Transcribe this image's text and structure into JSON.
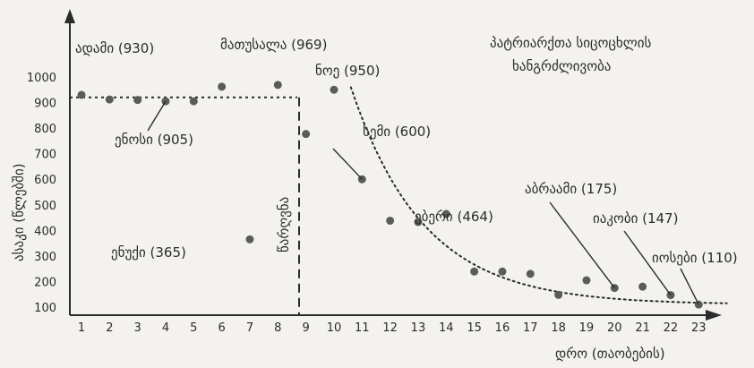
{
  "chart_data": {
    "type": "scatter",
    "title_lines": [
      "პატრიარქთა სიცოცხლის",
      "ხანგრძლივობა"
    ],
    "xlabel": "დრო (თაობების)",
    "ylabel": "ასაკი (წლებში)",
    "xlim": [
      0.6,
      24
    ],
    "ylim": [
      60,
      1150
    ],
    "x_ticks": [
      1,
      2,
      3,
      4,
      5,
      6,
      7,
      8,
      9,
      10,
      11,
      12,
      13,
      14,
      15,
      16,
      17,
      18,
      19,
      20,
      21,
      22,
      23
    ],
    "y_ticks": [
      100,
      200,
      300,
      400,
      500,
      600,
      700,
      800,
      900,
      1000
    ],
    "points": [
      {
        "x": 1,
        "y": 930
      },
      {
        "x": 2,
        "y": 912
      },
      {
        "x": 3,
        "y": 910
      },
      {
        "x": 4,
        "y": 905
      },
      {
        "x": 5,
        "y": 905
      },
      {
        "x": 6,
        "y": 962
      },
      {
        "x": 7,
        "y": 365
      },
      {
        "x": 8,
        "y": 969
      },
      {
        "x": 9,
        "y": 777
      },
      {
        "x": 10,
        "y": 950
      },
      {
        "x": 11,
        "y": 600
      },
      {
        "x": 12,
        "y": 438
      },
      {
        "x": 13,
        "y": 433
      },
      {
        "x": 14,
        "y": 464
      },
      {
        "x": 15,
        "y": 239
      },
      {
        "x": 16,
        "y": 239
      },
      {
        "x": 17,
        "y": 230
      },
      {
        "x": 18,
        "y": 148
      },
      {
        "x": 19,
        "y": 205
      },
      {
        "x": 20,
        "y": 175
      },
      {
        "x": 21,
        "y": 180
      },
      {
        "x": 22,
        "y": 147
      },
      {
        "x": 23,
        "y": 110
      }
    ],
    "pre_flood_level": 920,
    "flood_label": "წარღვნა",
    "annotations": [
      {
        "text": "ადამი (930)"
      },
      {
        "text": "მათუსალა (969)"
      },
      {
        "text": "ნოე (950)"
      },
      {
        "text": "ენოსი (905)"
      },
      {
        "text": "ენუქი (365)"
      },
      {
        "text": "სემი (600)"
      },
      {
        "text": "ებერი (464)"
      },
      {
        "text": "აბრაამი (175)"
      },
      {
        "text": "იაკობი (147)"
      },
      {
        "text": "იოსები (110)"
      }
    ]
  }
}
